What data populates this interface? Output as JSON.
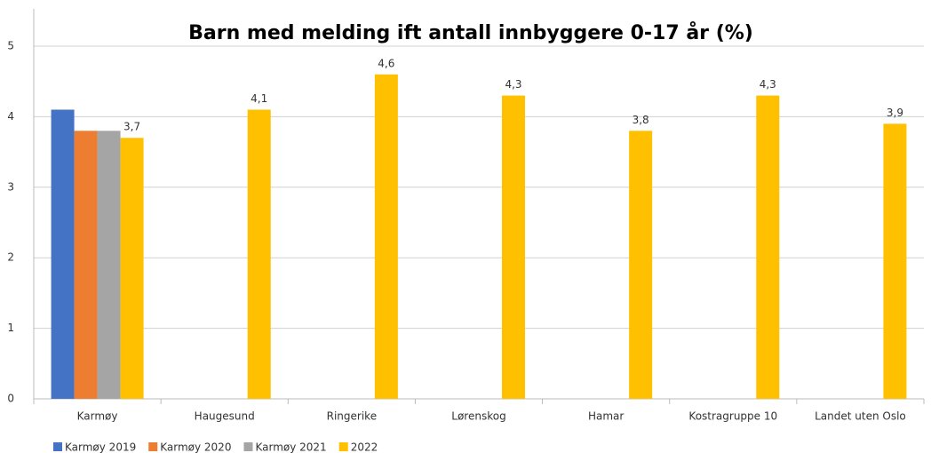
{
  "chart_data": {
    "type": "bar",
    "title": "Barn med melding ift antall innbyggere 0-17 år (%)",
    "categories": [
      "Karmøy",
      "Haugesund",
      "Ringerike",
      "Lørenskog",
      "Hamar",
      "Kostragruppe 10",
      "Landet uten Oslo"
    ],
    "series": [
      {
        "name": "Karmøy 2019",
        "color": "#4472c4",
        "values": [
          4.1,
          null,
          null,
          null,
          null,
          null,
          null
        ]
      },
      {
        "name": "Karmøy 2020",
        "color": "#ed7d31",
        "values": [
          3.8,
          null,
          null,
          null,
          null,
          null,
          null
        ]
      },
      {
        "name": "Karmøy 2021",
        "color": "#a5a5a5",
        "values": [
          3.8,
          null,
          null,
          null,
          null,
          null,
          null
        ]
      },
      {
        "name": "2022",
        "color": "#ffc000",
        "values": [
          3.7,
          4.1,
          4.6,
          4.3,
          3.8,
          4.3,
          3.9
        ],
        "value_labels": [
          "3,7",
          "4,1",
          "4,6",
          "4,3",
          "3,8",
          "4,3",
          "3,9"
        ]
      }
    ],
    "ylim": [
      0,
      5
    ],
    "yticks": [
      0,
      1,
      2,
      3,
      4,
      5
    ],
    "grid": true,
    "legend": "bottom-left"
  }
}
